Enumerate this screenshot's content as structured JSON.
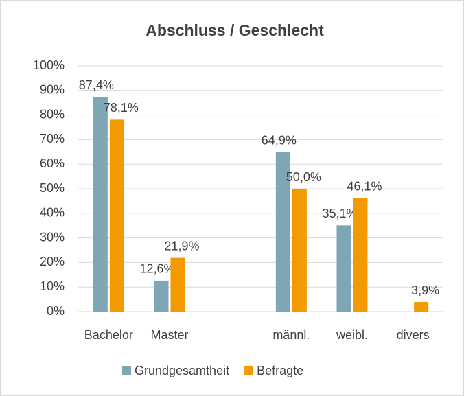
{
  "chart_data": {
    "type": "bar",
    "title": "Abschluss / Geschlecht",
    "categories": [
      "Bachelor",
      "Master",
      null,
      "männl.",
      "weibl.",
      "divers"
    ],
    "series": [
      {
        "name": "Grundgesamtheit",
        "color": "#7fa6b4",
        "values": [
          87.4,
          12.6,
          null,
          64.9,
          35.1,
          null
        ],
        "value_labels": [
          "87,4%",
          "12,6%",
          null,
          "64,9%",
          "35,1%",
          null
        ]
      },
      {
        "name": "Befragte",
        "color": "#f39a00",
        "values": [
          78.1,
          21.9,
          null,
          50.0,
          46.1,
          3.9
        ],
        "value_labels": [
          "78,1%",
          "21,9%",
          null,
          "50,0%",
          "46,1%",
          "3,9%"
        ]
      }
    ],
    "ylim": [
      0,
      100
    ],
    "yticks": [
      {
        "value": 0,
        "label": "0%"
      },
      {
        "value": 10,
        "label": "10%"
      },
      {
        "value": 20,
        "label": "20%"
      },
      {
        "value": 30,
        "label": "30%"
      },
      {
        "value": 40,
        "label": "40%"
      },
      {
        "value": 50,
        "label": "50%"
      },
      {
        "value": 60,
        "label": "60%"
      },
      {
        "value": 70,
        "label": "70%"
      },
      {
        "value": 80,
        "label": "80%"
      },
      {
        "value": 90,
        "label": "90%"
      },
      {
        "value": 100,
        "label": "100%"
      }
    ],
    "grid": true,
    "legend": "bottom"
  }
}
